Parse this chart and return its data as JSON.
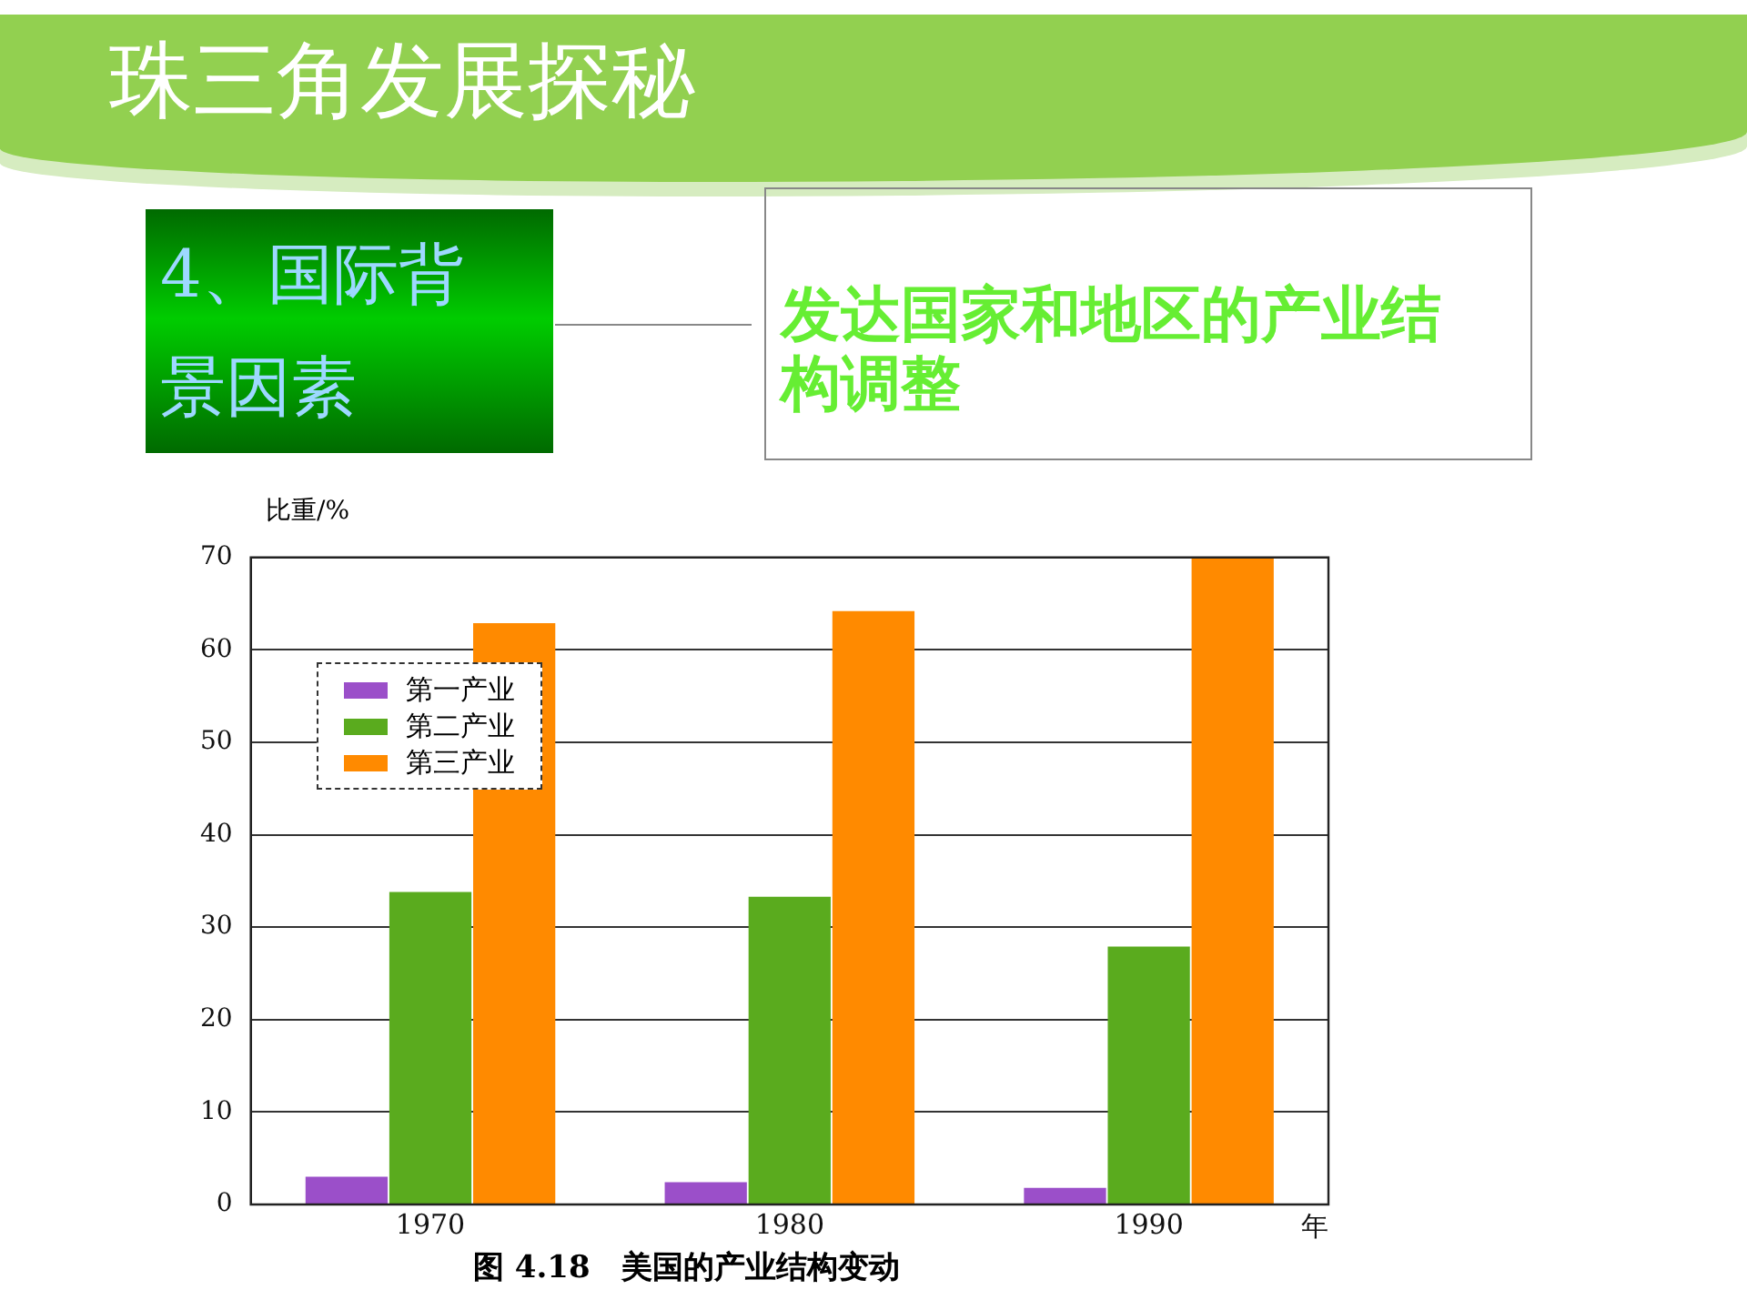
{
  "chart_data": {
    "type": "bar",
    "title": "珠三角发展探秘",
    "subtitle": "发达国家和地区的产业结构调整",
    "annotations": [
      "4、国际背景因素",
      "图 4.18　美国的产业结构变动"
    ],
    "xlabel": "年",
    "ylabel": "比重/%",
    "categories": [
      "1970",
      "1980",
      "1990"
    ],
    "series": [
      {
        "name": "第一产业",
        "color": "#9b4fc9",
        "values": [
          3,
          2.4,
          1.8
        ]
      },
      {
        "name": "第二产业",
        "color": "#5aab1e",
        "values": [
          33.8,
          33.3,
          27.9
        ]
      },
      {
        "name": "第三产业",
        "color": "#ff8a00",
        "values": [
          62.9,
          64.2,
          70
        ]
      }
    ],
    "ylim": [
      0,
      70
    ],
    "yticks": [
      0,
      10,
      20,
      30,
      40,
      50,
      60,
      70
    ],
    "grid": "y",
    "legend": "top left"
  }
}
